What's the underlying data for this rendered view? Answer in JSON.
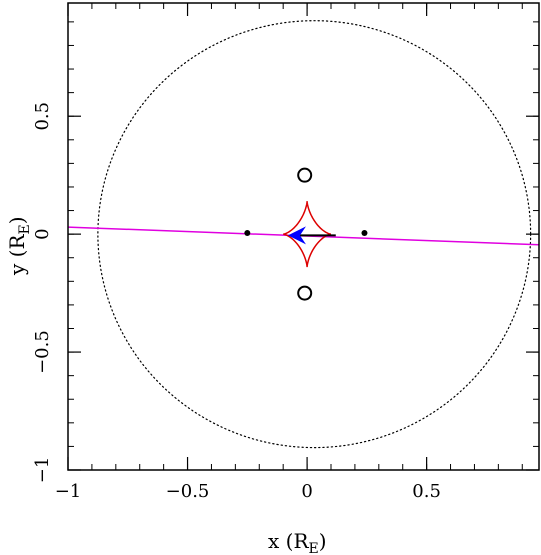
{
  "chart_data": {
    "type": "scatter",
    "title": "",
    "xlabel": "x (R",
    "xlabel_sub": "E",
    "xlabel_close": ")",
    "ylabel": "y (R",
    "ylabel_sub": "E",
    "ylabel_close": ")",
    "xlim": [
      -1.0,
      0.97
    ],
    "ylim": [
      -1.0,
      0.98
    ],
    "grid": false,
    "x_major_ticks": [
      -1,
      -0.5,
      0,
      0.5
    ],
    "x_tick_labels": [
      "−1",
      "−0.5",
      "0",
      "0.5"
    ],
    "y_major_ticks": [
      -1,
      -0.5,
      0,
      0.5
    ],
    "y_tick_labels": [
      "−1",
      "−0.5",
      "0",
      "0.5"
    ],
    "minor_tick_step": 0.1,
    "colors": {
      "trajectory": "#e000e0",
      "caustic": "#dd0000",
      "arrow": "#0000ff",
      "einstein_ring": "#000000",
      "lens_points": "#000000",
      "images": "#000000"
    },
    "einstein_ring": {
      "center": [
        0.03,
        0.0
      ],
      "radius": 0.905,
      "style": "dotted"
    },
    "source_trajectory": {
      "points": [
        [
          -1.0,
          0.03
        ],
        [
          0.97,
          -0.045
        ]
      ]
    },
    "caustic": {
      "center": [
        0.0,
        0.0
      ],
      "half_width_x": 0.1,
      "half_height_y": 0.14
    },
    "lens_points": [
      {
        "x": -0.25,
        "y": 0.005
      },
      {
        "x": 0.24,
        "y": 0.005
      }
    ],
    "open_circles": [
      {
        "x": -0.01,
        "y": 0.25
      },
      {
        "x": -0.01,
        "y": -0.25
      }
    ],
    "arrow": {
      "tail": [
        0.12,
        -0.005
      ],
      "head": [
        -0.08,
        -0.005
      ]
    }
  }
}
